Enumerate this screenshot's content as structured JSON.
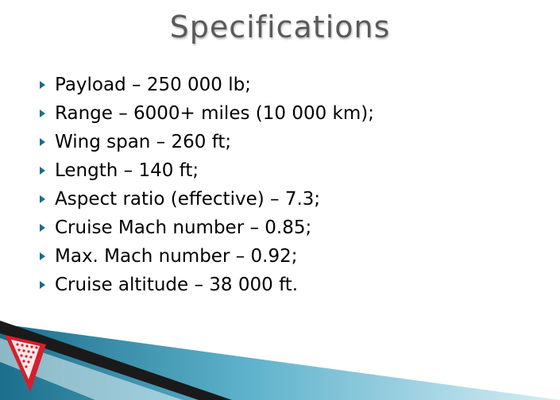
{
  "slide": {
    "title": "Specifications",
    "bullets": [
      "Payload – 250 000 lb;",
      "Range – 6000+ miles (10 000 km);",
      "Wing span – 260 ft;",
      "Length – 140 ft;",
      "Aspect ratio (effective) – 7.3;",
      "Cruise Mach number – 0.85;",
      "Max. Mach number – 0.92;",
      "Cruise altitude – 38 000 ft."
    ]
  },
  "icons": {
    "bullet": "triangle-bullet-icon",
    "logo": "red-triangle-logo-icon"
  },
  "colors": {
    "title": "#5a5a5a",
    "bullet": "#1b6f8c",
    "text": "#000000",
    "accent_teal": "#1f7fa3",
    "accent_red": "#d81e2b"
  }
}
